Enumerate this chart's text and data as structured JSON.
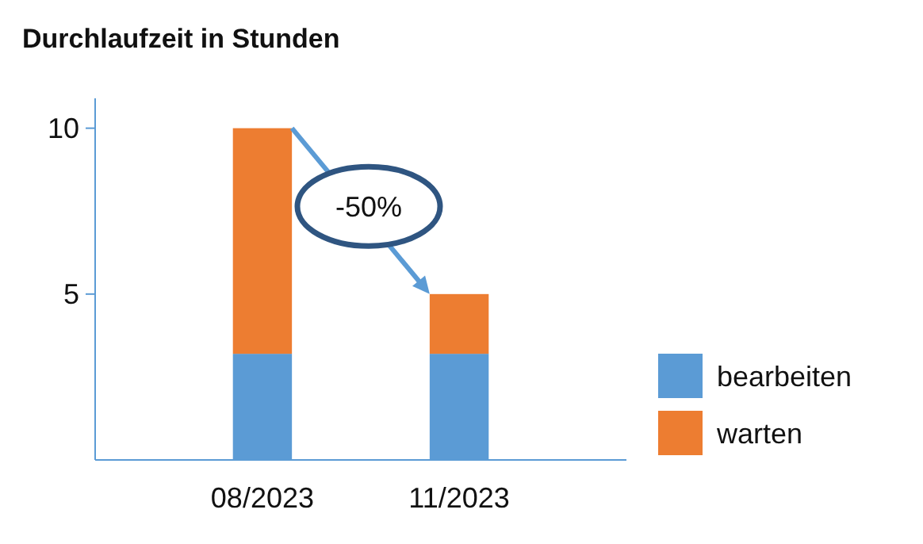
{
  "chart_data": {
    "type": "bar",
    "title": "Durchlaufzeit in Stunden",
    "categories": [
      "08/2023",
      "11/2023"
    ],
    "stacked": true,
    "series": [
      {
        "name": "bearbeiten",
        "color": "#5b9bd5",
        "values": [
          3.2,
          3.2
        ]
      },
      {
        "name": "warten",
        "color": "#ed7d31",
        "values": [
          6.8,
          1.8
        ]
      }
    ],
    "ylim": [
      0,
      10.9
    ],
    "yticks": [
      5,
      10
    ],
    "grid": false,
    "legend": "right",
    "annotations": [
      "-50%"
    ]
  }
}
